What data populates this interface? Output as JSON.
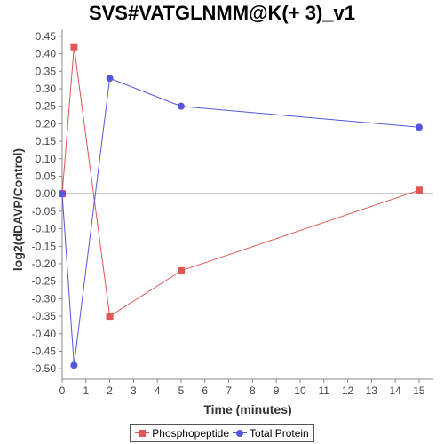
{
  "chart_data": {
    "type": "line",
    "title": "SVS#VATGLNMM@K(+ 3)_v1",
    "xlabel": "Time (minutes)",
    "ylabel": "log2(dDAVP/Control)",
    "xlim": [
      0,
      15.6
    ],
    "ylim": [
      -0.53,
      0.47
    ],
    "x_ticks": [
      0,
      1,
      2,
      3,
      4,
      5,
      6,
      7,
      8,
      9,
      10,
      11,
      12,
      13,
      14,
      15
    ],
    "y_ticks": [
      0.45,
      0.4,
      0.35,
      0.3,
      0.25,
      0.2,
      0.15,
      0.1,
      0.05,
      0.0,
      -0.05,
      -0.1,
      -0.15,
      -0.2,
      -0.25,
      -0.3,
      -0.35,
      -0.4,
      -0.45,
      -0.5
    ],
    "zero_line": true,
    "grid": false,
    "legend_position": "bottom-center",
    "series": [
      {
        "name": "Phosphopeptide",
        "color": "#e05555",
        "marker": "square",
        "x": [
          0,
          0.5,
          2,
          5,
          15
        ],
        "y": [
          0.0,
          0.42,
          -0.35,
          -0.22,
          0.01
        ]
      },
      {
        "name": "Total Protein",
        "color": "#5555e0",
        "marker": "circle",
        "x": [
          0,
          0.5,
          2,
          5,
          15
        ],
        "y": [
          0.0,
          -0.49,
          0.33,
          0.25,
          0.19
        ]
      }
    ]
  }
}
